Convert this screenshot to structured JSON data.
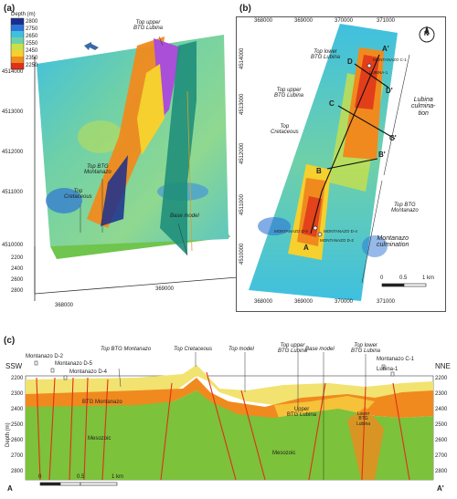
{
  "panel_a": {
    "label": "(a)",
    "legend": {
      "title": "Depth (m)",
      "ticks": [
        "2800",
        "2750",
        "2650",
        "2550",
        "2450",
        "2350",
        "2250"
      ],
      "colors": [
        "#1a2e8f",
        "#2e74d6",
        "#3fc0e0",
        "#6fd0a8",
        "#c8e04a",
        "#f5d02e",
        "#f08a1e",
        "#e0301a"
      ]
    },
    "labels": {
      "top_upper_btg_lubina": "Top upper\nBTG Lubina",
      "top_btg_montanazo": "Top BTG\nMontanazo",
      "top_cretaceous": "Top\nCretaceous",
      "base_model": "Base model"
    },
    "y_ticks": [
      "4514000",
      "4513000",
      "4512000",
      "4511000",
      "4510000"
    ],
    "z_ticks": [
      "2200",
      "2400",
      "2600",
      "2800"
    ],
    "x_ticks": [
      "368000",
      "369000"
    ]
  },
  "panel_b": {
    "label": "(b)",
    "top_ticks": [
      "368000",
      "369000",
      "370000",
      "371000"
    ],
    "bottom_ticks": [
      "368000",
      "369000",
      "370000",
      "371000"
    ],
    "left_ticks": [
      "4514000",
      "4513000",
      "4512000",
      "4511000",
      "4510000"
    ],
    "north": "N",
    "points": {
      "a_prime": "A'",
      "d": "D",
      "d_prime": "D'",
      "c": "C",
      "c_prime": "C'",
      "b": "B",
      "b_prime": "B'",
      "a": "A"
    },
    "labels": {
      "top_lower_btg_lubina": "Top lower\nBTG Lubina",
      "top_upper_btg_lubina": "Top upper\nBTG Lubina",
      "top_cretaceous": "Top\nCretaceous",
      "top_btg_montanazo": "Top BTG\nMontanazo",
      "lubina_culmination": "Lubina\nculmina-\ntion",
      "montanazo_culmination": "Montanazo\nculmination"
    },
    "wells": {
      "montanazo_c1": "MONTANAZO C-1",
      "lubina_1": "LUBINA-1",
      "montanazo_d5": "MONTANAZO D-5",
      "montanazo_d4": "MONTANAZO D-4",
      "montanazo_d2": "MONTANAZO D-2"
    },
    "scale": {
      "t0": "0",
      "t1": "0.5",
      "t2": "1 km"
    }
  },
  "panel_c": {
    "label": "(c)",
    "ssw": "SSW",
    "nne": "NNE",
    "a": "A",
    "a_prime": "A'",
    "y_axis_label": "Depth (m)",
    "depth_ticks": [
      "2200",
      "2300",
      "2400",
      "2500",
      "2600",
      "2700",
      "2800"
    ],
    "wells": {
      "d2": "Montanazo D-2",
      "d5": "Montanazo D-5",
      "d4": "Montanazo D-4",
      "c1": "Montanazo C-1",
      "lubina1": "Lubina-1"
    },
    "labels": {
      "top_btg_montanazo": "Top BTG Montanazo",
      "top_cretaceous": "Top Cretaceous",
      "top_model": "Top model",
      "top_upper_btg_lubina": "Top upper\nBTG Lubina",
      "base_model": "Base model",
      "top_lower_btg_lubina": "Top lower\nBTG Lubina"
    },
    "units": {
      "btg_montanazo": "BTG Montanazo",
      "mesozoic_1": "Mesozoic",
      "mesozoic_2": "Mesozoic",
      "upper_btg_lubina": "Upper\nBTG Lubina",
      "lower_btg_lubina": "Lower\nBTG\nLubina"
    },
    "scale": {
      "t0": "0",
      "t1": "0.5",
      "t2": "1 km"
    }
  }
}
